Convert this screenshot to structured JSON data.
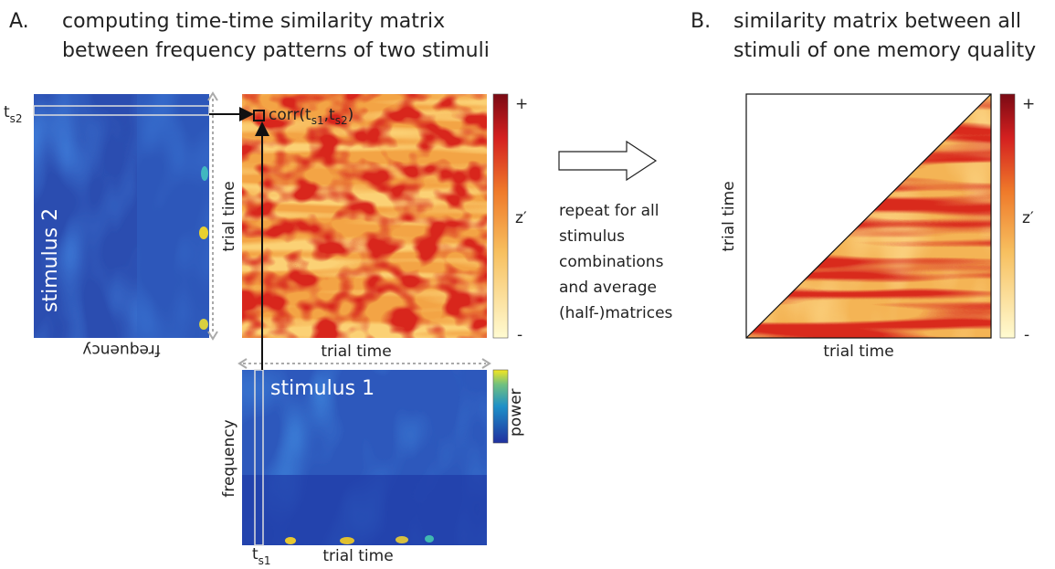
{
  "panel_a": {
    "label": "A.",
    "title": [
      "computing time-time similarity matrix",
      "between frequency patterns of two stimuli"
    ],
    "stimulus2": {
      "label": "stimulus 2",
      "x_label": "frequency",
      "t_label": {
        "base": "t",
        "sub": "s2"
      }
    },
    "matrix": {
      "corr": [
        "corr(t",
        "s1",
        ",t",
        "s2",
        ")"
      ],
      "x_label": "trial time",
      "y_label": "trial time",
      "colorbar": [
        "+",
        "z′",
        "-"
      ]
    },
    "stimulus1": {
      "label": "stimulus 1",
      "x_label": "trial time",
      "y_label": "frequency",
      "colorbar_label": "power",
      "t_label": {
        "base": "t",
        "sub": "s1"
      }
    }
  },
  "arrow_text": [
    "repeat for all",
    "stimulus",
    "combinations",
    "and average",
    "(half-)matrices"
  ],
  "panel_b": {
    "label": "B.",
    "title": [
      "similarity matrix between all",
      "stimuli of one memory quality"
    ],
    "x_label": "trial time",
    "y_label": "trial time",
    "colorbar": [
      "+",
      "z′",
      "-"
    ]
  }
}
